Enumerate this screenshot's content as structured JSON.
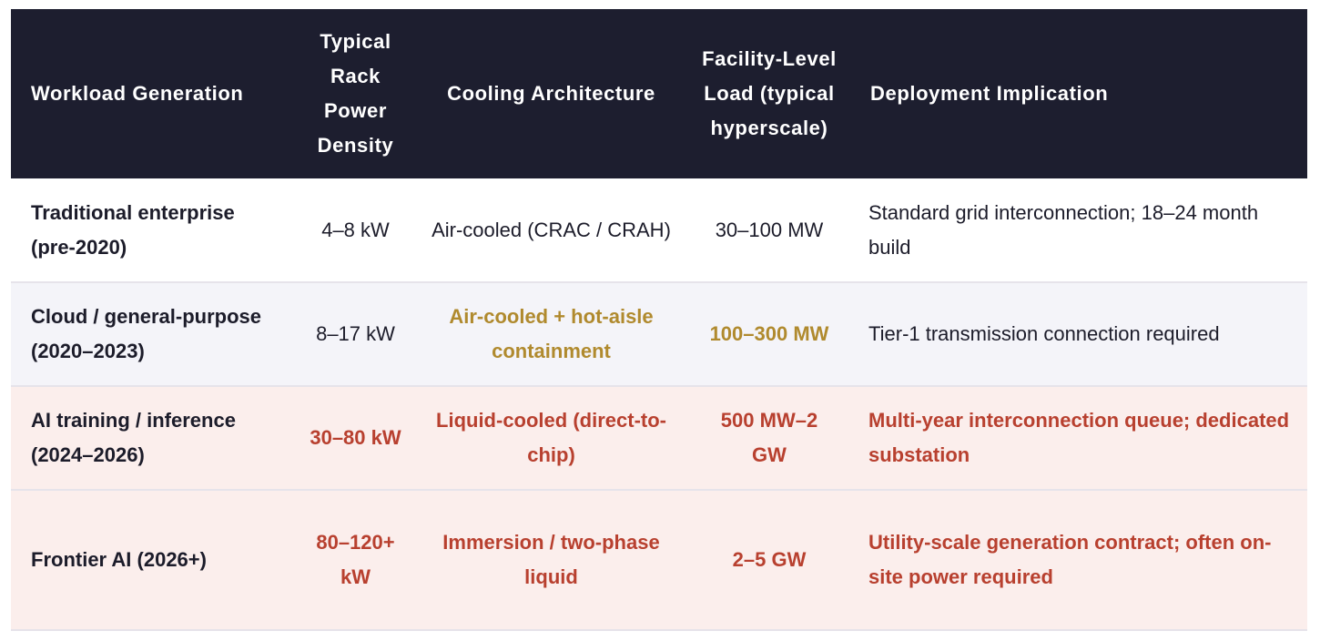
{
  "table": {
    "headers": [
      "Workload Generation",
      "Typical Rack Power Density",
      "Cooling Architecture",
      "Facility-Level Load (typical hyperscale)",
      "Deployment Implication"
    ],
    "rows": [
      {
        "workload": "Traditional enterprise (pre-2020)",
        "rack_density": "4–8 kW",
        "cooling": "Air-cooled (CRAC / CRAH)",
        "facility_load": "30–100 MW",
        "implication": "Standard grid interconnection; 18–24 month build"
      },
      {
        "workload": "Cloud / general-purpose (2020–2023)",
        "rack_density": "8–17 kW",
        "cooling": "Air-cooled + hot-aisle containment",
        "facility_load": "100–300 MW",
        "implication": "Tier-1 transmission connection required"
      },
      {
        "workload": "AI training / inference (2024–2026)",
        "rack_density": "30–80 kW",
        "cooling": "Liquid-cooled (direct-to-chip)",
        "facility_load": "500 MW–2 GW",
        "implication": "Multi-year interconnection queue; dedicated substation"
      },
      {
        "workload": "Frontier AI (2026+)",
        "rack_density": "80–120+ kW",
        "cooling": "Immersion / two-phase liquid",
        "facility_load": "2–5 GW",
        "implication": "Utility-scale generation contract; often on-site power required"
      }
    ]
  },
  "colors": {
    "header_bg": "#1d1e2f",
    "highlight_gold": "#b08a2e",
    "highlight_red": "#b8402f",
    "row_tint_blue": "#f4f4f9",
    "row_tint_red": "#fbeeec"
  }
}
